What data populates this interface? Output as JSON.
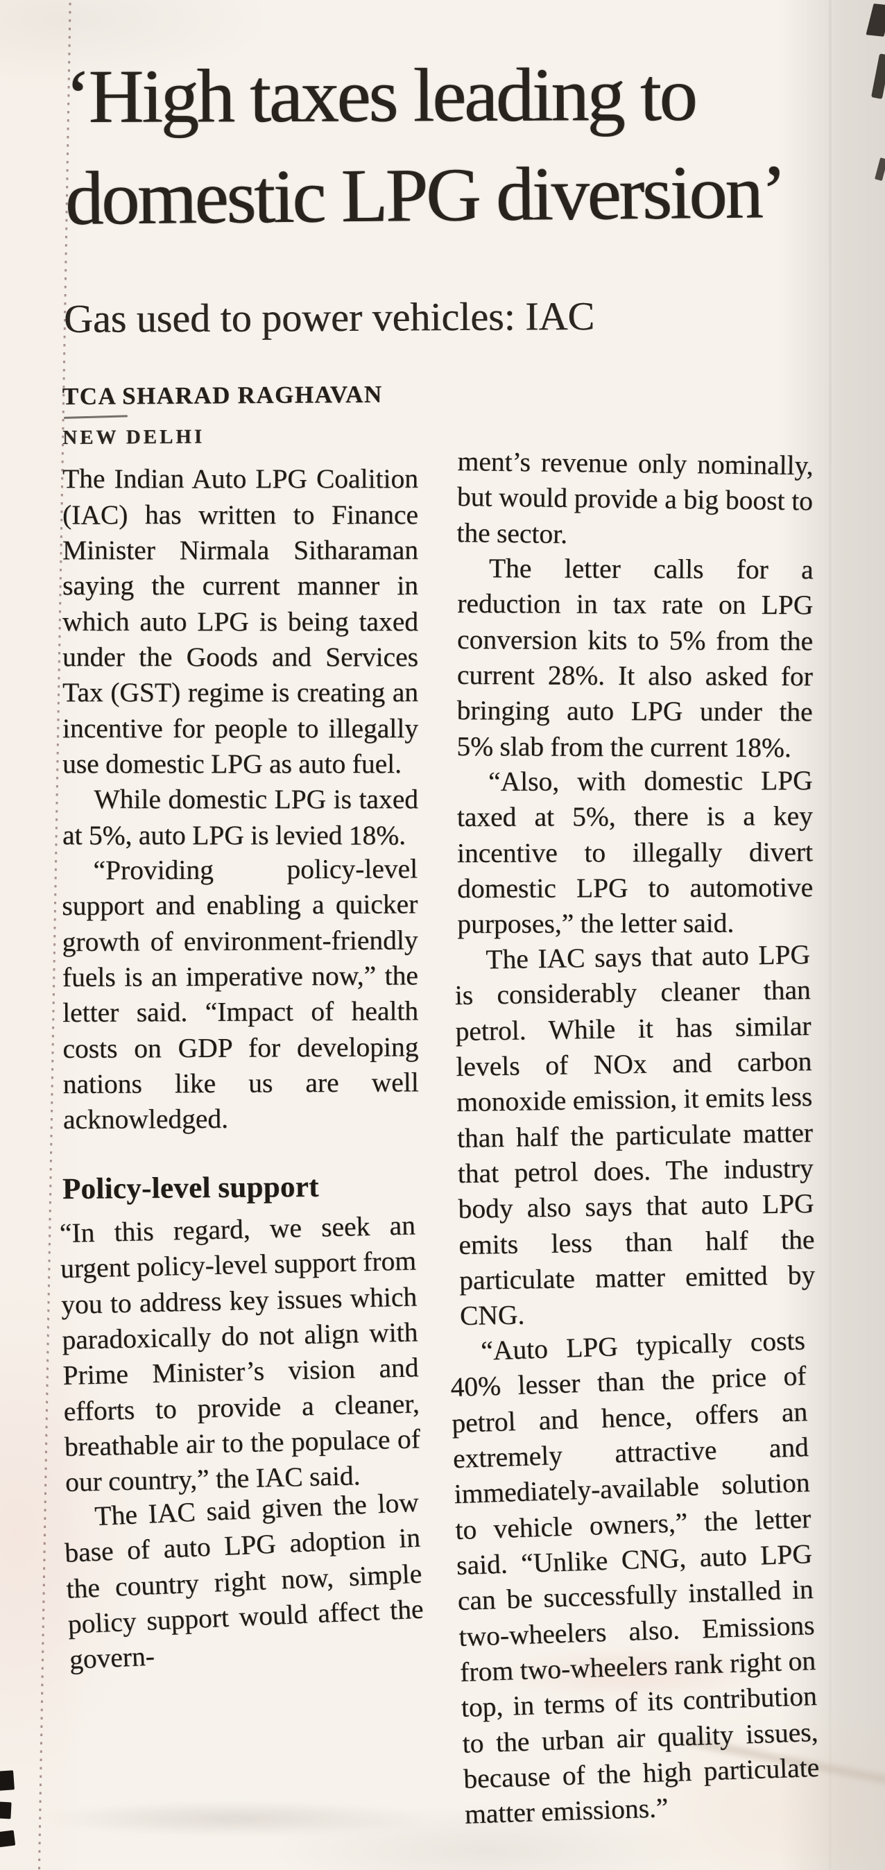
{
  "colors": {
    "paper": "#f7f3ec",
    "ink": "#1f1b17",
    "headline_ink": "#28231d",
    "perforation_dots": "#68362f"
  },
  "article": {
    "headline_line1": "‘High taxes leading to",
    "headline_line2": "domestic LPG diversion’",
    "subheadline": "Gas used to power vehicles: IAC",
    "byline": "TCA SHARAD RAGHAVAN",
    "dateline": "NEW DELHI",
    "left_column": {
      "p1": "The Indian Auto LPG Coalition (IAC) has written to Finance Minister Nirmala Sitharaman saying the current manner in which auto LPG is being taxed under the Goods and Services Tax (GST) regime is creating an incentive for people to illegally use domestic LPG as auto fuel.",
      "p2": "While domestic LPG is taxed at 5%, auto LPG is levied 18%.",
      "p3": "“Providing policy-level support and enabling a quicker growth of environment-friendly fuels is an imperative now,” the letter said. “Impact of health costs on GDP for developing nations like us are well acknowledged.",
      "section_heading": "Policy-level support",
      "p4": "“In this regard, we seek an urgent policy-level support from you to address key issues which paradoxically do not align with Prime Minister’s vision and efforts to provide a cleaner, breathable air to the populace of our country,” the IAC said.",
      "p5": "The IAC said given the low base of auto LPG adoption in the country right now, simple policy support would affect the govern-"
    },
    "right_column": {
      "p1": "ment’s revenue only nominally, but would provide a big boost to the sector.",
      "p2": "The letter calls for a reduction in tax rate on LPG conversion kits to 5% from the current 28%. It also asked for bringing auto LPG under the 5% slab from the current 18%.",
      "p3": "“Also, with domestic LPG taxed at 5%, there is a key incentive to illegally divert domestic LPG to automotive purposes,” the letter said.",
      "p4": "The IAC says that auto LPG is considerably cleaner than petrol. While it has similar levels of NOx and carbon monoxide emission, it emits less than half the particulate matter that petrol does. The industry body also says that auto LPG emits less than half the particulate matter emitted by CNG.",
      "p5": "“Auto LPG typically costs 40% lesser than the price of petrol and hence, offers an extremely attractive and immediately-available solution to vehicle owners,” the letter said. “Unlike CNG, auto LPG can be successfully installed in two-wheelers also. Emissions from two-wheelers rank right on top, in terms of its contribution to the urban air quality issues, because of the high particulate matter emissions.”"
    }
  }
}
